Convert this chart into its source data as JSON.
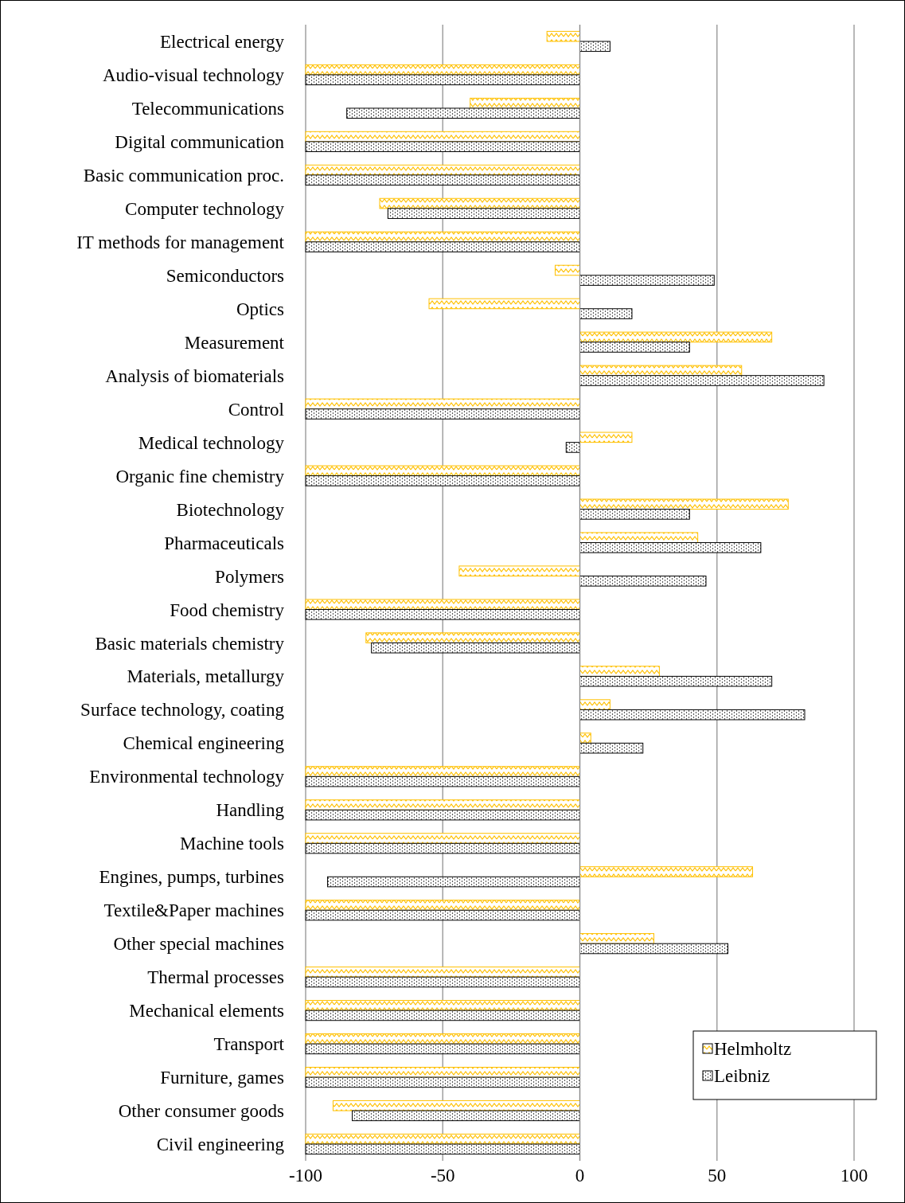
{
  "chart_data": {
    "type": "bar",
    "orientation": "horizontal",
    "categories": [
      "Electrical energy",
      "Audio-visual technology",
      "Telecommunications",
      "Digital communication",
      "Basic communication proc.",
      "Computer technology",
      "IT methods for management",
      "Semiconductors",
      "Optics",
      "Measurement",
      "Analysis of biomaterials",
      "Control",
      "Medical technology",
      "Organic fine chemistry",
      "Biotechnology",
      "Pharmaceuticals",
      "Polymers",
      "Food chemistry",
      "Basic materials chemistry",
      "Materials, metallurgy",
      "Surface technology, coating",
      "Chemical engineering",
      "Environmental technology",
      "Handling",
      "Machine tools",
      "Engines, pumps, turbines",
      "Textile&Paper machines",
      "Other special machines",
      "Thermal processes",
      "Mechanical elements",
      "Transport",
      "Furniture, games",
      "Other consumer goods",
      "Civil engineering"
    ],
    "series": [
      {
        "name": "Helmholtz",
        "color": "#ffc000",
        "values": [
          -12,
          -100,
          -40,
          -100,
          -100,
          -73,
          -100,
          -9,
          -55,
          70,
          59,
          -100,
          19,
          -100,
          76,
          43,
          -44,
          -100,
          -78,
          29,
          11,
          4,
          -100,
          -100,
          -100,
          63,
          -100,
          27,
          -100,
          -100,
          -100,
          -100,
          -90,
          -100
        ]
      },
      {
        "name": "Leibniz",
        "color": "#000000",
        "values": [
          11,
          -100,
          -85,
          -100,
          -100,
          -70,
          -100,
          49,
          19,
          40,
          89,
          -100,
          -5,
          -100,
          40,
          66,
          46,
          -100,
          -76,
          70,
          82,
          23,
          -100,
          -100,
          -100,
          -92,
          -100,
          54,
          -100,
          -100,
          -100,
          -100,
          -83,
          -100
        ]
      }
    ],
    "xlim": [
      -100,
      100
    ],
    "xticks": [
      -100,
      -50,
      0,
      50,
      100
    ],
    "grid": "x",
    "legend": "bottom right"
  }
}
